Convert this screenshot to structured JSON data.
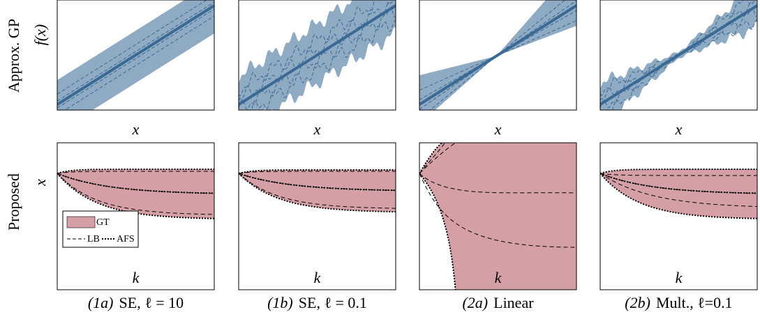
{
  "row_labels": [
    "Approx. GP",
    "Proposed"
  ],
  "y_labels": [
    "f(x)",
    "x"
  ],
  "x_labels": [
    "x",
    "k"
  ],
  "captions": [
    {
      "tag": "(1a)",
      "text": "SE, ℓ = 10"
    },
    {
      "tag": "(1b)",
      "text": "SE, ℓ = 0.1"
    },
    {
      "tag": "(2a)",
      "text": "Linear"
    },
    {
      "tag": "(2b)",
      "text": "Mult., ℓ=0.1"
    }
  ],
  "legend": [
    "GT",
    "LB",
    "AFS"
  ]
}
